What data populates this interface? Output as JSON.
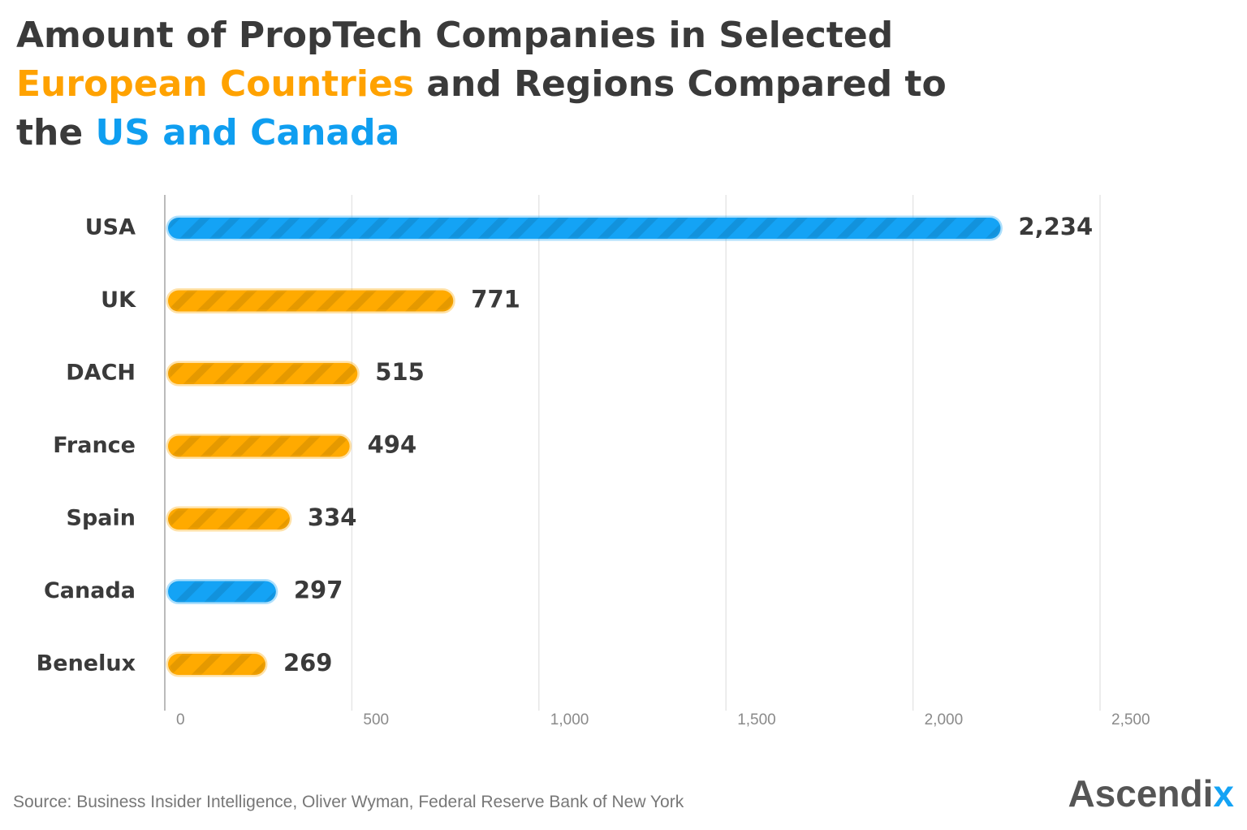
{
  "chart_data": {
    "type": "bar",
    "orientation": "horizontal",
    "title_parts": [
      {
        "text": "Amount of PropTech Companies in Selected ",
        "color": "#3a3a3a"
      },
      {
        "text": "European Countries",
        "color": "#ffa200"
      },
      {
        "text": " and Regions Compared to the ",
        "color": "#3a3a3a"
      },
      {
        "text": "US and Canada",
        "color": "#0f9ef0"
      }
    ],
    "categories": [
      "USA",
      "UK",
      "DACH",
      "France",
      "Spain",
      "Canada",
      "Benelux"
    ],
    "values": [
      2234,
      771,
      515,
      494,
      334,
      297,
      269
    ],
    "value_labels": [
      "2,234",
      "771",
      "515",
      "494",
      "334",
      "297",
      "269"
    ],
    "colors": [
      "#14a3f5",
      "#ffaa00",
      "#ffaa00",
      "#ffaa00",
      "#ffaa00",
      "#14a3f5",
      "#ffaa00"
    ],
    "xlim": [
      0,
      2500
    ],
    "xticks": [
      0,
      500,
      {
        "value": 1000,
        "label": "1,000"
      },
      {
        "value": 1500,
        "label": "1,500"
      },
      {
        "value": 2000,
        "label": "2,000"
      },
      {
        "value": 2500,
        "label": "2,500"
      }
    ],
    "grid": true,
    "source": "Source:  Business Insider Intelligence, Oliver Wyman, Federal Reserve Bank of New York",
    "logo_parts": [
      {
        "text": "Ascendi",
        "color": "#555555"
      },
      {
        "text": "x",
        "color": "#14a3f5"
      }
    ]
  }
}
